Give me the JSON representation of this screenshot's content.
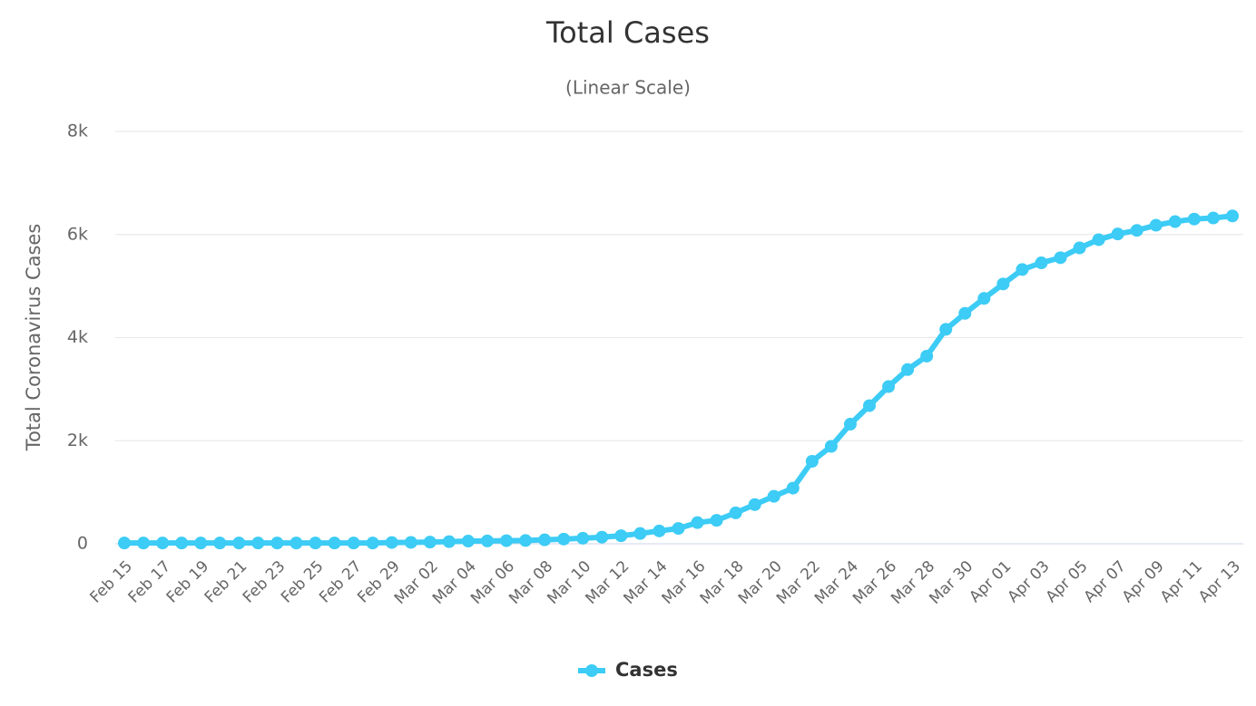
{
  "chart_data": {
    "type": "line",
    "title": "Total Cases",
    "subtitle": "(Linear Scale)",
    "y_label": "Total Coronavirus Cases",
    "categories": [
      "Feb 15",
      null,
      "Feb 17",
      null,
      "Feb 19",
      null,
      "Feb 21",
      null,
      "Feb 23",
      null,
      "Feb 25",
      null,
      "Feb 27",
      null,
      "Feb 29",
      null,
      "Mar 02",
      null,
      "Mar 04",
      null,
      "Mar 06",
      null,
      "Mar 08",
      null,
      "Mar 10",
      null,
      "Mar 12",
      null,
      "Mar 14",
      null,
      "Mar 16",
      null,
      "Mar 18",
      null,
      "Mar 20",
      null,
      "Mar 22",
      null,
      "Mar 24",
      null,
      "Mar 26",
      null,
      "Mar 28",
      null,
      "Mar 30",
      null,
      "Apr 01",
      null,
      "Apr 03",
      null,
      "Apr 05",
      null,
      "Apr 07",
      null,
      "Apr 09",
      null,
      "Apr 11",
      null,
      "Apr 13"
    ],
    "series": [
      {
        "name": "Cases",
        "color": "#3cccf5",
        "values": [
          15,
          15,
          15,
          15,
          15,
          15,
          15,
          15,
          15,
          15,
          15,
          15,
          15,
          15,
          25,
          27,
          33,
          41,
          52,
          55,
          60,
          63,
          76,
          91,
          107,
          128,
          156,
          199,
          249,
          297,
          410,
          455,
          600,
          760,
          920,
          1080,
          1600,
          1890,
          2320,
          2680,
          3050,
          3380,
          3640,
          4160,
          4470,
          4760,
          5040,
          5320,
          5450,
          5550,
          5740,
          5900,
          6010,
          6080,
          6180,
          6250,
          6300,
          6320,
          6360
        ]
      }
    ],
    "ylim": [
      0,
      8000
    ],
    "yticks": [
      0,
      {
        "value": 2000,
        "label": "2k"
      },
      {
        "value": 4000,
        "label": "4k"
      },
      {
        "value": 6000,
        "label": "6k"
      },
      {
        "value": 8000,
        "label": "8k"
      }
    ],
    "grid": true,
    "legend": "bottom"
  }
}
